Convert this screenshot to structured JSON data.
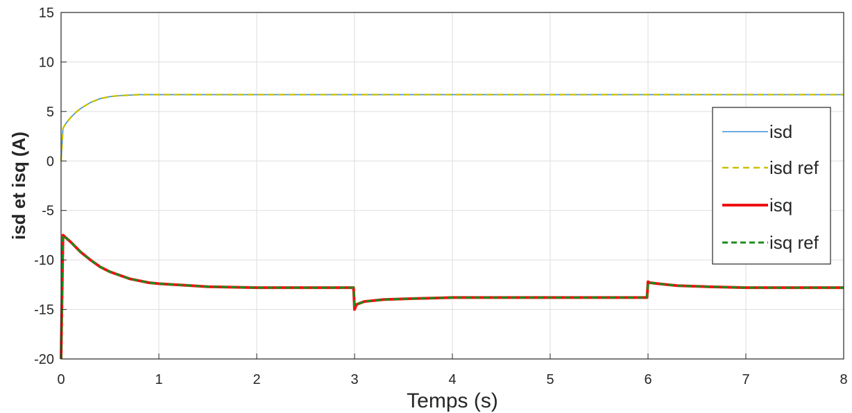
{
  "chart_data": {
    "type": "line",
    "title": "",
    "xlabel": "Temps (s)",
    "ylabel": "isd et isq (A)",
    "xlim": [
      0,
      8
    ],
    "ylim": [
      -20,
      15
    ],
    "x_ticks": [
      0,
      1,
      2,
      3,
      4,
      5,
      6,
      7,
      8
    ],
    "y_ticks": [
      15,
      10,
      5,
      0,
      -5,
      -10,
      -15,
      -20
    ],
    "grid": true,
    "legend_position": "right",
    "series": [
      {
        "name": "isd",
        "color": "#3a8fd6",
        "style": "solid",
        "x": [
          0,
          0.02,
          0.05,
          0.1,
          0.15,
          0.2,
          0.3,
          0.4,
          0.5,
          0.6,
          0.7,
          0.8,
          1.0,
          2.0,
          3.0,
          4.0,
          5.0,
          6.0,
          7.0,
          8.0
        ],
        "y": [
          0,
          3.3,
          3.8,
          4.4,
          4.9,
          5.3,
          5.9,
          6.3,
          6.5,
          6.6,
          6.65,
          6.7,
          6.7,
          6.7,
          6.7,
          6.7,
          6.7,
          6.7,
          6.7,
          6.7
        ]
      },
      {
        "name": "isd ref",
        "color": "#c8c000",
        "style": "dashed",
        "x": [
          0,
          0.02,
          0.05,
          0.1,
          0.15,
          0.2,
          0.3,
          0.4,
          0.5,
          0.6,
          0.7,
          0.8,
          1.0,
          2.0,
          3.0,
          4.0,
          5.0,
          6.0,
          7.0,
          8.0
        ],
        "y": [
          0,
          3.3,
          3.8,
          4.4,
          4.9,
          5.3,
          5.9,
          6.3,
          6.5,
          6.6,
          6.65,
          6.7,
          6.7,
          6.7,
          6.7,
          6.7,
          6.7,
          6.7,
          6.7,
          6.7
        ]
      },
      {
        "name": "isq",
        "color": "#ee1111",
        "style": "solid",
        "x": [
          0,
          0.02,
          0.1,
          0.2,
          0.3,
          0.4,
          0.5,
          0.7,
          0.9,
          1.0,
          1.5,
          2.0,
          2.99,
          3.0,
          3.02,
          3.1,
          3.3,
          3.6,
          4.0,
          5.0,
          5.99,
          6.0,
          6.02,
          6.1,
          6.3,
          6.6,
          7.0,
          8.0
        ],
        "y": [
          -20,
          -7.5,
          -8.2,
          -9.2,
          -10.0,
          -10.7,
          -11.2,
          -11.9,
          -12.3,
          -12.4,
          -12.7,
          -12.8,
          -12.8,
          -15.0,
          -14.5,
          -14.2,
          -14.0,
          -13.9,
          -13.8,
          -13.8,
          -13.8,
          -12.2,
          -12.3,
          -12.4,
          -12.6,
          -12.7,
          -12.8,
          -12.8
        ]
      },
      {
        "name": "isq ref",
        "color": "#1a8c1a",
        "style": "dashed",
        "x": [
          0,
          0.02,
          0.1,
          0.2,
          0.3,
          0.4,
          0.5,
          0.7,
          0.9,
          1.0,
          1.5,
          2.0,
          2.99,
          3.0,
          3.02,
          3.1,
          3.3,
          3.6,
          4.0,
          5.0,
          5.99,
          6.0,
          6.02,
          6.1,
          6.3,
          6.6,
          7.0,
          8.0
        ],
        "y": [
          -20,
          -7.5,
          -8.2,
          -9.2,
          -10.0,
          -10.7,
          -11.2,
          -11.9,
          -12.3,
          -12.4,
          -12.7,
          -12.8,
          -12.8,
          -14.6,
          -14.5,
          -14.2,
          -14.0,
          -13.9,
          -13.8,
          -13.8,
          -13.8,
          -12.3,
          -12.3,
          -12.4,
          -12.6,
          -12.7,
          -12.8,
          -12.8
        ]
      }
    ]
  }
}
